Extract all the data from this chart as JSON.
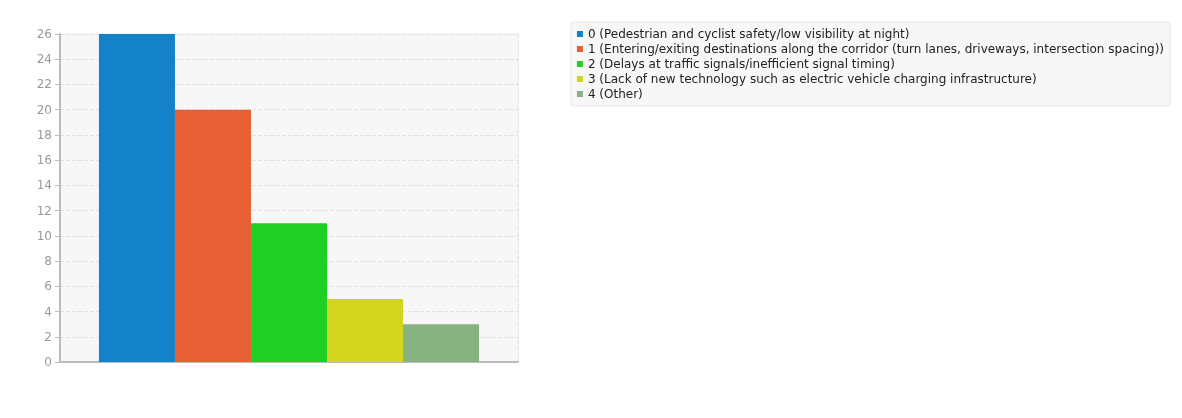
{
  "chart_data": {
    "type": "bar",
    "categories": [
      null
    ],
    "series": [
      {
        "name": "0 (Pedestrian and cyclist safety/low visibility at night)",
        "color": "#1482c8",
        "values": [
          26
        ]
      },
      {
        "name": "1 (Entering/exiting destinations along the corridor (turn lanes, driveways, intersection spacing))",
        "color": "#e75f34",
        "values": [
          20
        ]
      },
      {
        "name": "2 (Delays at traffic signals/inefficient signal timing)",
        "color": "#20cf23",
        "values": [
          11
        ]
      },
      {
        "name": "3 (Lack of new technology such as electric vehicle charging infrastructure)",
        "color": "#d2d41e",
        "values": [
          5
        ]
      },
      {
        "name": "4 (Other)",
        "color": "#89b283",
        "values": [
          3
        ]
      }
    ],
    "ylim": [
      0,
      26
    ],
    "yticks": [
      0,
      2,
      4,
      6,
      8,
      10,
      12,
      14,
      16,
      18,
      20,
      22,
      24,
      26
    ],
    "grid": true,
    "legend": "top right"
  }
}
